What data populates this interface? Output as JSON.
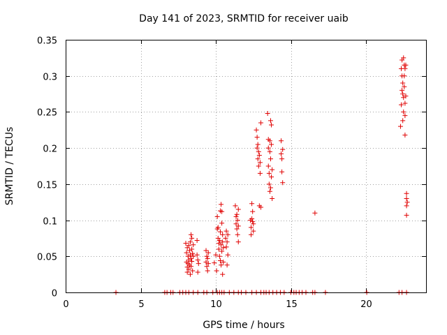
{
  "chart_data": {
    "type": "scatter",
    "title": "Day 141 of 2023, SRMTID for receiver uaib",
    "xlabel": "GPS time / hours",
    "ylabel": "SRMTID / TECUs",
    "xlim": [
      0,
      24
    ],
    "ylim": [
      0,
      0.35
    ],
    "xticks": [
      0,
      5,
      10,
      15,
      20
    ],
    "xtick_labels": [
      "0",
      "5",
      "10",
      "15",
      "20"
    ],
    "yticks": [
      0,
      0.05,
      0.1,
      0.15,
      0.2,
      0.25,
      0.3,
      0.35
    ],
    "ytick_labels": [
      "0",
      "0.05",
      "0.1",
      "0.15",
      "0.2",
      "0.25",
      "0.3",
      "0.35"
    ],
    "grid": true,
    "marker": "+",
    "color": "#e00000",
    "series": [
      {
        "name": "SRMTID",
        "points": [
          [
            3.35,
            0.0
          ],
          [
            6.6,
            0.0
          ],
          [
            6.75,
            0.0
          ],
          [
            7.0,
            0.0
          ],
          [
            7.15,
            0.0
          ],
          [
            7.6,
            0.0
          ],
          [
            7.8,
            0.0
          ],
          [
            8.0,
            0.0
          ],
          [
            8.2,
            0.0
          ],
          [
            8.5,
            0.0
          ],
          [
            8.8,
            0.0
          ],
          [
            9.2,
            0.0
          ],
          [
            9.4,
            0.0
          ],
          [
            9.8,
            0.0
          ],
          [
            10.1,
            0.0
          ],
          [
            10.25,
            0.0
          ],
          [
            10.4,
            0.0
          ],
          [
            10.55,
            0.0
          ],
          [
            10.9,
            0.0
          ],
          [
            11.2,
            0.0
          ],
          [
            11.5,
            0.0
          ],
          [
            11.7,
            0.0
          ],
          [
            12.0,
            0.0
          ],
          [
            12.4,
            0.0
          ],
          [
            12.7,
            0.0
          ],
          [
            13.0,
            0.0
          ],
          [
            13.2,
            0.0
          ],
          [
            13.35,
            0.0
          ],
          [
            13.55,
            0.0
          ],
          [
            13.8,
            0.0
          ],
          [
            14.05,
            0.0
          ],
          [
            14.3,
            0.0
          ],
          [
            14.55,
            0.0
          ],
          [
            15.0,
            0.0
          ],
          [
            15.2,
            0.0
          ],
          [
            15.35,
            0.0
          ],
          [
            15.55,
            0.0
          ],
          [
            15.75,
            0.0
          ],
          [
            16.0,
            0.0
          ],
          [
            16.45,
            0.0
          ],
          [
            16.6,
            0.0
          ],
          [
            17.3,
            0.0
          ],
          [
            20.05,
            0.0
          ],
          [
            22.2,
            0.0
          ],
          [
            22.4,
            0.0
          ],
          [
            22.7,
            0.0
          ],
          [
            8.0,
            0.068
          ],
          [
            8.05,
            0.055
          ],
          [
            8.05,
            0.042
          ],
          [
            8.1,
            0.062
          ],
          [
            8.1,
            0.035
          ],
          [
            8.1,
            0.028
          ],
          [
            8.15,
            0.05
          ],
          [
            8.15,
            0.04
          ],
          [
            8.2,
            0.065
          ],
          [
            8.2,
            0.045
          ],
          [
            8.2,
            0.032
          ],
          [
            8.25,
            0.058
          ],
          [
            8.25,
            0.038
          ],
          [
            8.3,
            0.07
          ],
          [
            8.3,
            0.052
          ],
          [
            8.3,
            0.025
          ],
          [
            8.35,
            0.08
          ],
          [
            8.35,
            0.047
          ],
          [
            8.35,
            0.036
          ],
          [
            8.4,
            0.075
          ],
          [
            8.4,
            0.06
          ],
          [
            8.4,
            0.043
          ],
          [
            8.45,
            0.054
          ],
          [
            8.45,
            0.03
          ],
          [
            8.5,
            0.066
          ],
          [
            8.5,
            0.05
          ],
          [
            8.75,
            0.072
          ],
          [
            8.75,
            0.052
          ],
          [
            8.8,
            0.045
          ],
          [
            8.8,
            0.028
          ],
          [
            8.85,
            0.04
          ],
          [
            9.35,
            0.058
          ],
          [
            9.35,
            0.042
          ],
          [
            9.4,
            0.05
          ],
          [
            9.4,
            0.036
          ],
          [
            9.45,
            0.047
          ],
          [
            9.45,
            0.03
          ],
          [
            9.5,
            0.055
          ],
          [
            9.5,
            0.04
          ],
          [
            9.9,
            0.041
          ],
          [
            10.0,
            0.052
          ],
          [
            10.05,
            0.03
          ],
          [
            10.1,
            0.105
          ],
          [
            10.1,
            0.088
          ],
          [
            10.15,
            0.09
          ],
          [
            10.15,
            0.075
          ],
          [
            10.2,
            0.068
          ],
          [
            10.2,
            0.06
          ],
          [
            10.25,
            0.072
          ],
          [
            10.25,
            0.05
          ],
          [
            10.3,
            0.113
          ],
          [
            10.3,
            0.084
          ],
          [
            10.3,
            0.044
          ],
          [
            10.35,
            0.122
          ],
          [
            10.35,
            0.066
          ],
          [
            10.35,
            0.038
          ],
          [
            10.4,
            0.112
          ],
          [
            10.4,
            0.096
          ],
          [
            10.4,
            0.057
          ],
          [
            10.45,
            0.08
          ],
          [
            10.45,
            0.07
          ],
          [
            10.5,
            0.062
          ],
          [
            10.5,
            0.042
          ],
          [
            10.45,
            0.025
          ],
          [
            10.65,
            0.075
          ],
          [
            10.7,
            0.085
          ],
          [
            10.7,
            0.063
          ],
          [
            10.75,
            0.07
          ],
          [
            10.8,
            0.08
          ],
          [
            10.8,
            0.052
          ],
          [
            10.75,
            0.038
          ],
          [
            11.3,
            0.12
          ],
          [
            11.35,
            0.105
          ],
          [
            11.35,
            0.095
          ],
          [
            11.4,
            0.108
          ],
          [
            11.4,
            0.088
          ],
          [
            11.45,
            0.1
          ],
          [
            11.45,
            0.08
          ],
          [
            11.5,
            0.115
          ],
          [
            11.5,
            0.092
          ],
          [
            11.5,
            0.07
          ],
          [
            12.3,
            0.1
          ],
          [
            12.35,
            0.09
          ],
          [
            12.35,
            0.08
          ],
          [
            12.4,
            0.123
          ],
          [
            12.4,
            0.102
          ],
          [
            12.45,
            0.112
          ],
          [
            12.45,
            0.098
          ],
          [
            12.5,
            0.095
          ],
          [
            12.5,
            0.085
          ],
          [
            12.7,
            0.225
          ],
          [
            12.75,
            0.215
          ],
          [
            12.75,
            0.2
          ],
          [
            12.8,
            0.205
          ],
          [
            12.8,
            0.185
          ],
          [
            12.85,
            0.195
          ],
          [
            12.85,
            0.175
          ],
          [
            12.9,
            0.19
          ],
          [
            12.9,
            0.12
          ],
          [
            12.95,
            0.18
          ],
          [
            12.95,
            0.165
          ],
          [
            13.0,
            0.235
          ],
          [
            13.0,
            0.118
          ],
          [
            13.45,
            0.248
          ],
          [
            13.5,
            0.212
          ],
          [
            13.5,
            0.2
          ],
          [
            13.5,
            0.175
          ],
          [
            13.55,
            0.165
          ],
          [
            13.55,
            0.15
          ],
          [
            13.6,
            0.21
          ],
          [
            13.6,
            0.195
          ],
          [
            13.6,
            0.14
          ],
          [
            13.65,
            0.238
          ],
          [
            13.65,
            0.185
          ],
          [
            13.65,
            0.145
          ],
          [
            13.7,
            0.232
          ],
          [
            13.7,
            0.205
          ],
          [
            13.7,
            0.16
          ],
          [
            13.75,
            0.17
          ],
          [
            13.75,
            0.13
          ],
          [
            14.35,
            0.21
          ],
          [
            14.35,
            0.192
          ],
          [
            14.4,
            0.185
          ],
          [
            14.4,
            0.167
          ],
          [
            14.45,
            0.198
          ],
          [
            14.45,
            0.152
          ],
          [
            16.6,
            0.11
          ],
          [
            22.3,
            0.23
          ],
          [
            22.35,
            0.31
          ],
          [
            22.35,
            0.26
          ],
          [
            22.4,
            0.322
          ],
          [
            22.4,
            0.3
          ],
          [
            22.4,
            0.28
          ],
          [
            22.45,
            0.29
          ],
          [
            22.45,
            0.275
          ],
          [
            22.45,
            0.238
          ],
          [
            22.5,
            0.325
          ],
          [
            22.5,
            0.27
          ],
          [
            22.5,
            0.25
          ],
          [
            22.55,
            0.315
          ],
          [
            22.55,
            0.3
          ],
          [
            22.55,
            0.285
          ],
          [
            22.6,
            0.31
          ],
          [
            22.6,
            0.262
          ],
          [
            22.6,
            0.245
          ],
          [
            22.6,
            0.218
          ],
          [
            22.65,
            0.315
          ],
          [
            22.65,
            0.272
          ],
          [
            22.7,
            0.137
          ],
          [
            22.7,
            0.13
          ],
          [
            22.75,
            0.125
          ],
          [
            22.7,
            0.12
          ],
          [
            22.7,
            0.107
          ]
        ]
      }
    ]
  }
}
